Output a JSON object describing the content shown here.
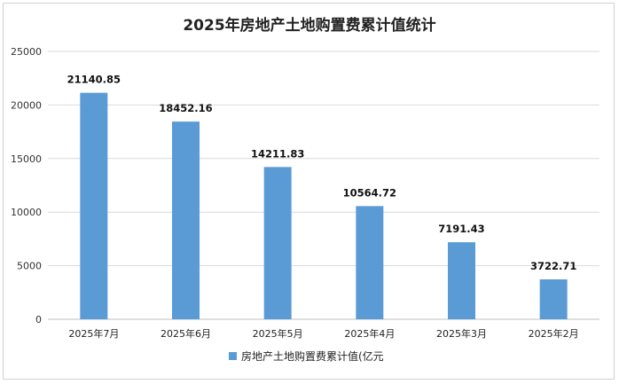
{
  "chart_data": {
    "type": "bar",
    "title": "2025年房地产土地购置费累计值统计",
    "categories": [
      "2025年7月",
      "2025年6月",
      "2025年5月",
      "2025年4月",
      "2025年3月",
      "2025年2月"
    ],
    "series": [
      {
        "name": "房地产土地购置费累计值(亿元",
        "values": [
          21140.85,
          18452.16,
          14211.83,
          10564.72,
          7191.43,
          3722.71
        ],
        "labels": [
          "21140.85",
          "18452.16",
          "14211.83",
          "10564.72",
          "7191.43",
          "3722.71"
        ],
        "color": "#5b9bd5"
      }
    ],
    "yticks": [
      "0",
      "5000",
      "10000",
      "15000",
      "20000",
      "25000"
    ],
    "ylim": [
      0,
      25000
    ],
    "grid": true,
    "legend_position": "bottom"
  }
}
